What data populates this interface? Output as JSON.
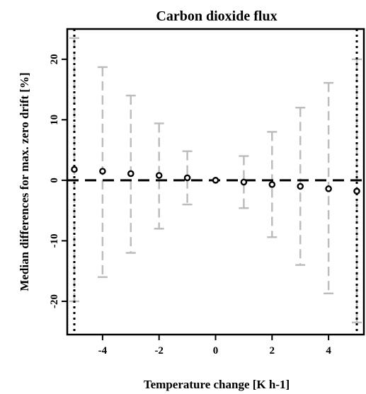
{
  "chart_data": {
    "type": "scatter",
    "title": "Carbon dioxide flux",
    "xlabel": "Temperature change [K h-1]",
    "ylabel": "Median differences for max. zero drift [%]",
    "xlim": [
      -5.25,
      5.25
    ],
    "ylim": [
      -25.5,
      25
    ],
    "xticks": [
      -4,
      -2,
      0,
      2,
      4
    ],
    "yticks": [
      -20,
      -10,
      0,
      10,
      20
    ],
    "grid": false,
    "reference_lines": {
      "horizontal_y": 0,
      "vertical_x": [
        -5,
        5
      ]
    },
    "series": [
      {
        "points": [
          {
            "x": -5,
            "y": 1.8,
            "lower": -20.0,
            "upper": 23.5
          },
          {
            "x": -4,
            "y": 1.5,
            "lower": -16.0,
            "upper": 18.7
          },
          {
            "x": -3,
            "y": 1.1,
            "lower": -12.0,
            "upper": 14.0
          },
          {
            "x": -2,
            "y": 0.8,
            "lower": -8.0,
            "upper": 9.4
          },
          {
            "x": -1,
            "y": 0.4,
            "lower": -4.0,
            "upper": 4.8
          },
          {
            "x": 0,
            "y": 0.0,
            "lower": 0.0,
            "upper": 0.0
          },
          {
            "x": 1,
            "y": -0.3,
            "lower": -4.6,
            "upper": 4.0
          },
          {
            "x": 2,
            "y": -0.7,
            "lower": -9.4,
            "upper": 8.0
          },
          {
            "x": 3,
            "y": -1.0,
            "lower": -14.0,
            "upper": 12.0
          },
          {
            "x": 4,
            "y": -1.4,
            "lower": -18.7,
            "upper": 16.1
          },
          {
            "x": 5,
            "y": -1.8,
            "lower": -23.5,
            "upper": 20.0
          }
        ]
      }
    ],
    "colors": {
      "points": "#000000",
      "error_bars": "#bdbdbd",
      "reference_lines": "#000000"
    }
  }
}
